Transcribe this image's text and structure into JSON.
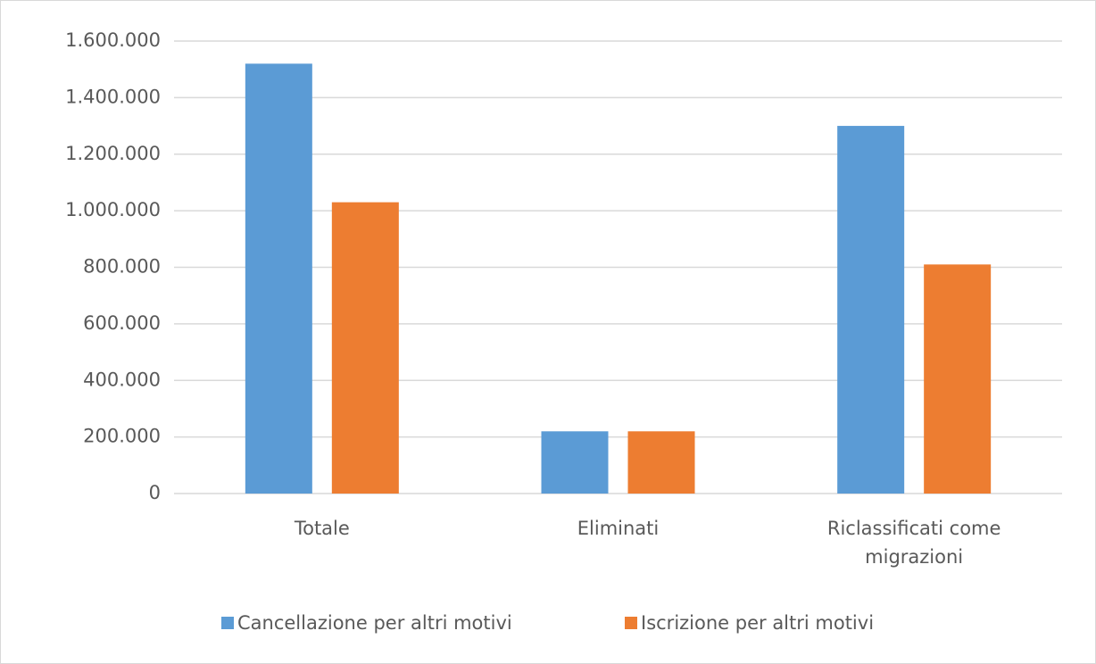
{
  "chart_data": {
    "type": "bar",
    "categories": [
      "Totale",
      "Eliminati",
      "Riclassificati come migrazioni"
    ],
    "series": [
      {
        "name": "Cancellazione per altri motivi",
        "color": "#5b9bd5",
        "values": [
          1520000,
          220000,
          1300000
        ]
      },
      {
        "name": "Iscrizione per altri motivi",
        "color": "#ed7d31",
        "values": [
          1030000,
          220000,
          810000
        ]
      }
    ],
    "ylim": [
      0,
      1600000
    ],
    "yticks": [
      0,
      {
        "value": 200000,
        "label": "200.000"
      },
      {
        "value": 400000,
        "label": "400.000"
      },
      {
        "value": 600000,
        "label": "600.000"
      },
      {
        "value": 800000,
        "label": "800.000"
      },
      {
        "value": 1000000,
        "label": "1.000.000"
      },
      {
        "value": 1200000,
        "label": "1.200.000"
      },
      {
        "value": 1400000,
        "label": "1.400.000"
      },
      {
        "value": 1600000,
        "label": "1.600.000"
      }
    ],
    "grid": true,
    "legend": "bottom"
  }
}
